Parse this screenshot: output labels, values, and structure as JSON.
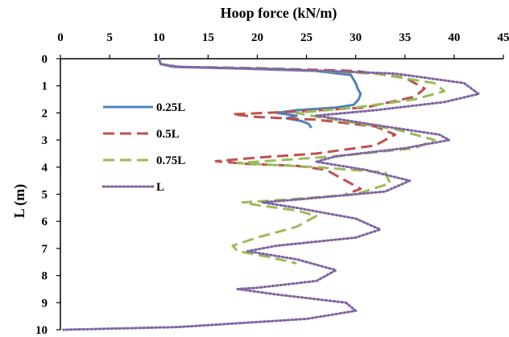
{
  "chart_data": {
    "type": "line",
    "title": "",
    "xlabel": "Hoop force (kN/m)",
    "ylabel": "L (m)",
    "xlim": [
      0,
      45
    ],
    "ylim": [
      0,
      10
    ],
    "x_ticks": [
      "0",
      "5",
      "10",
      "15",
      "20",
      "25",
      "30",
      "35",
      "40",
      "45"
    ],
    "y_ticks": [
      "0",
      "1",
      "2",
      "3",
      "4",
      "5",
      "6",
      "7",
      "8",
      "9",
      "10"
    ],
    "x_axis_position": "top",
    "y_axis_inverted": true,
    "grid": false,
    "legend_position": "left",
    "series": [
      {
        "name": "0.25L",
        "color": "#4f81bd",
        "style": "solid",
        "points": [
          [
            10.0,
            0.0
          ],
          [
            10.2,
            0.2
          ],
          [
            11.5,
            0.3
          ],
          [
            18.0,
            0.36
          ],
          [
            26.0,
            0.45
          ],
          [
            29.5,
            0.6
          ],
          [
            30.0,
            0.9
          ],
          [
            30.2,
            1.1
          ],
          [
            30.5,
            1.3
          ],
          [
            30.3,
            1.5
          ],
          [
            29.8,
            1.7
          ],
          [
            28.0,
            1.8
          ],
          [
            24.0,
            1.9
          ],
          [
            22.0,
            2.0
          ],
          [
            24.0,
            2.1
          ],
          [
            23.0,
            2.2
          ],
          [
            24.5,
            2.3
          ],
          [
            25.2,
            2.4
          ],
          [
            25.5,
            2.55
          ]
        ]
      },
      {
        "name": "0.5L",
        "color": "#c0504d",
        "style": "dashed",
        "points": [
          [
            10.0,
            0.0
          ],
          [
            10.2,
            0.2
          ],
          [
            12.0,
            0.3
          ],
          [
            20.0,
            0.35
          ],
          [
            30.0,
            0.45
          ],
          [
            35.0,
            0.7
          ],
          [
            37.0,
            1.1
          ],
          [
            36.0,
            1.4
          ],
          [
            31.0,
            1.8
          ],
          [
            24.0,
            1.95
          ],
          [
            17.5,
            2.05
          ],
          [
            20.0,
            2.15
          ],
          [
            26.0,
            2.25
          ],
          [
            32.0,
            2.5
          ],
          [
            34.0,
            2.8
          ],
          [
            32.0,
            3.2
          ],
          [
            26.0,
            3.5
          ],
          [
            20.0,
            3.65
          ],
          [
            15.8,
            3.78
          ],
          [
            19.0,
            3.88
          ],
          [
            24.0,
            3.95
          ],
          [
            27.0,
            4.1
          ],
          [
            29.0,
            4.5
          ],
          [
            30.5,
            4.8
          ],
          [
            29.0,
            5.0
          ]
        ]
      },
      {
        "name": "0.75L",
        "color": "#9bbb59",
        "style": "dashed",
        "points": [
          [
            10.0,
            0.0
          ],
          [
            10.2,
            0.2
          ],
          [
            12.0,
            0.3
          ],
          [
            22.0,
            0.38
          ],
          [
            32.0,
            0.55
          ],
          [
            38.0,
            0.9
          ],
          [
            39.0,
            1.2
          ],
          [
            36.0,
            1.5
          ],
          [
            30.0,
            1.8
          ],
          [
            24.0,
            2.0
          ],
          [
            27.0,
            2.2
          ],
          [
            34.0,
            2.6
          ],
          [
            38.0,
            3.0
          ],
          [
            36.0,
            3.3
          ],
          [
            28.0,
            3.6
          ],
          [
            22.0,
            3.75
          ],
          [
            18.0,
            3.85
          ],
          [
            26.0,
            4.0
          ],
          [
            33.0,
            4.2
          ],
          [
            33.5,
            4.6
          ],
          [
            30.0,
            5.0
          ],
          [
            23.0,
            5.2
          ],
          [
            18.5,
            5.3
          ],
          [
            20.0,
            5.4
          ],
          [
            24.0,
            5.6
          ],
          [
            26.0,
            5.8
          ],
          [
            24.0,
            6.2
          ],
          [
            20.0,
            6.6
          ],
          [
            17.5,
            6.9
          ],
          [
            18.0,
            7.1
          ],
          [
            21.0,
            7.3
          ],
          [
            24.0,
            7.55
          ]
        ]
      },
      {
        "name": "L",
        "color": "#8064a2",
        "style": "dotted",
        "points": [
          [
            10.0,
            0.0
          ],
          [
            10.2,
            0.2
          ],
          [
            12.0,
            0.3
          ],
          [
            22.0,
            0.38
          ],
          [
            34.0,
            0.55
          ],
          [
            41.0,
            0.9
          ],
          [
            42.5,
            1.3
          ],
          [
            39.0,
            1.6
          ],
          [
            32.0,
            1.9
          ],
          [
            26.0,
            2.1
          ],
          [
            33.0,
            2.5
          ],
          [
            38.5,
            2.8
          ],
          [
            39.5,
            3.0
          ],
          [
            35.0,
            3.3
          ],
          [
            28.0,
            3.6
          ],
          [
            26.0,
            3.8
          ],
          [
            31.0,
            4.1
          ],
          [
            35.5,
            4.5
          ],
          [
            33.0,
            4.9
          ],
          [
            24.0,
            5.2
          ],
          [
            20.5,
            5.3
          ],
          [
            24.0,
            5.5
          ],
          [
            30.0,
            5.9
          ],
          [
            32.5,
            6.3
          ],
          [
            30.0,
            6.6
          ],
          [
            22.0,
            6.9
          ],
          [
            19.0,
            7.1
          ],
          [
            24.0,
            7.4
          ],
          [
            28.0,
            7.8
          ],
          [
            26.0,
            8.2
          ],
          [
            20.0,
            8.45
          ],
          [
            18.0,
            8.5
          ],
          [
            22.0,
            8.7
          ],
          [
            29.0,
            9.0
          ],
          [
            30.0,
            9.3
          ],
          [
            25.0,
            9.6
          ],
          [
            12.0,
            9.9
          ],
          [
            0.3,
            10.0
          ]
        ]
      }
    ]
  }
}
